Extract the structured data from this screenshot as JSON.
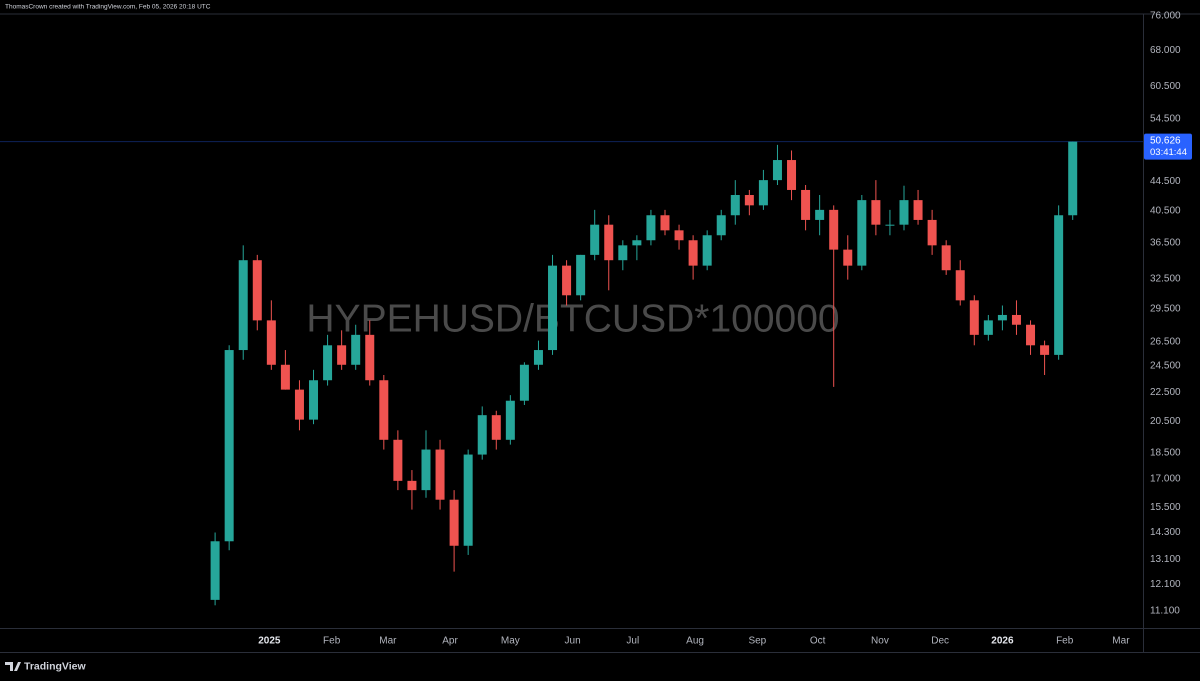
{
  "chart_data": {
    "type": "candlestick",
    "attribution": "ThomasCrown created with TradingView.com, Feb 05, 2026 20:18 UTC",
    "symbol": "HYPEHUSD/BTCUSD*100000",
    "brand": "TradingView",
    "log_scale": true,
    "grid": false,
    "up_color": "#26a69a",
    "down_color": "#ef5350",
    "categories": [
      null,
      null,
      null,
      null,
      null,
      null,
      null,
      null,
      null,
      null,
      null,
      null,
      null,
      null,
      null,
      null,
      null,
      null,
      null,
      null,
      null,
      null,
      null,
      null,
      null,
      null,
      null,
      null,
      null,
      null,
      null,
      null,
      null,
      null,
      null,
      null,
      null,
      null,
      null,
      null,
      null,
      null,
      null,
      null,
      null,
      null,
      null,
      null,
      null,
      null,
      null,
      null,
      null,
      null,
      null,
      null,
      null,
      null,
      null,
      null,
      null,
      null
    ],
    "open": [
      11.5,
      13.9,
      25.8,
      34.5,
      28.4,
      24.6,
      22.7,
      20.6,
      23.4,
      26.2,
      24.6,
      27.1,
      23.4,
      19.3,
      16.9,
      16.4,
      18.7,
      15.9,
      13.7,
      18.4,
      20.9,
      19.3,
      21.9,
      24.6,
      25.8,
      33.9,
      30.8,
      35.1,
      38.7,
      34.5,
      36.2,
      36.8,
      39.9,
      38.0,
      36.8,
      33.9,
      37.4,
      39.9,
      42.6,
      41.2,
      44.7,
      47.7,
      43.3,
      39.3,
      40.6,
      35.7,
      33.9,
      41.9,
      38.7,
      38.7,
      41.9,
      39.3,
      36.2,
      33.4,
      30.3,
      27.1,
      28.4,
      28.9,
      28.0,
      26.2,
      25.4,
      39.9
    ],
    "high": [
      14.3,
      26.2,
      36.2,
      35.1,
      30.3,
      25.8,
      23.4,
      24.2,
      27.1,
      27.5,
      28.0,
      28.4,
      23.8,
      19.9,
      17.5,
      19.9,
      19.3,
      16.4,
      18.7,
      21.5,
      21.2,
      22.3,
      24.8,
      26.6,
      35.1,
      34.5,
      35.1,
      40.6,
      39.9,
      36.8,
      37.4,
      40.6,
      40.6,
      38.7,
      37.4,
      38.0,
      40.6,
      44.7,
      43.3,
      46.2,
      50.1,
      49.2,
      44.0,
      42.6,
      41.2,
      37.4,
      42.6,
      44.7,
      40.6,
      43.9,
      43.3,
      40.6,
      36.8,
      34.5,
      30.8,
      28.9,
      29.8,
      30.3,
      28.4,
      26.6,
      41.2,
      50.626
    ],
    "low": [
      11.3,
      13.5,
      25.0,
      27.5,
      24.2,
      22.7,
      19.9,
      20.3,
      23.0,
      24.2,
      24.2,
      23.0,
      18.7,
      16.4,
      15.4,
      16.0,
      15.4,
      12.6,
      13.3,
      18.1,
      18.7,
      19.0,
      21.6,
      24.2,
      25.4,
      29.8,
      30.3,
      34.5,
      31.3,
      33.4,
      34.5,
      36.2,
      37.4,
      35.7,
      32.4,
      33.4,
      36.8,
      38.7,
      39.9,
      40.6,
      44.0,
      41.9,
      38.0,
      37.4,
      22.9,
      32.4,
      33.4,
      37.4,
      37.4,
      38.0,
      38.7,
      35.1,
      32.9,
      29.8,
      26.2,
      26.6,
      27.5,
      27.1,
      25.4,
      23.8,
      25.0,
      39.3
    ],
    "close": [
      13.9,
      25.8,
      34.5,
      28.4,
      24.6,
      22.7,
      20.6,
      23.4,
      26.2,
      24.6,
      27.1,
      23.4,
      19.3,
      16.9,
      16.4,
      18.7,
      15.9,
      13.7,
      18.4,
      20.9,
      19.3,
      21.9,
      24.6,
      25.8,
      33.9,
      30.8,
      35.1,
      38.7,
      34.5,
      36.2,
      36.8,
      39.9,
      38.0,
      36.8,
      33.9,
      37.4,
      39.9,
      42.6,
      41.2,
      44.7,
      47.7,
      43.3,
      39.3,
      40.6,
      35.7,
      33.9,
      41.9,
      38.7,
      38.7,
      41.9,
      39.3,
      36.2,
      33.4,
      30.3,
      27.1,
      28.4,
      28.9,
      28.0,
      26.2,
      25.4,
      39.9,
      50.626
    ],
    "last_price": 50.626,
    "countdown": "03:41:44",
    "xlim": [
      -15.3,
      66.0
    ],
    "xticks": [
      {
        "value": 3.86,
        "label": "2025"
      },
      {
        "value": 8.29,
        "label": "Feb"
      },
      {
        "value": 12.29,
        "label": "Mar"
      },
      {
        "value": 16.71,
        "label": "Apr"
      },
      {
        "value": 21.0,
        "label": "May"
      },
      {
        "value": 25.43,
        "label": "Jun"
      },
      {
        "value": 29.71,
        "label": "Jul"
      },
      {
        "value": 34.14,
        "label": "Aug"
      },
      {
        "value": 38.57,
        "label": "Sep"
      },
      {
        "value": 42.86,
        "label": "Oct"
      },
      {
        "value": 47.29,
        "label": "Nov"
      },
      {
        "value": 51.57,
        "label": "Dec"
      },
      {
        "value": 56.0,
        "label": "2026"
      },
      {
        "value": 60.43,
        "label": "Feb"
      },
      {
        "value": 64.43,
        "label": "Mar"
      }
    ],
    "ylim": [
      10.5,
      76.5
    ],
    "yticks": [
      {
        "value": 11.1,
        "label": "11.100"
      },
      {
        "value": 12.1,
        "label": "12.100"
      },
      {
        "value": 13.1,
        "label": "13.100"
      },
      {
        "value": 14.3,
        "label": "14.300"
      },
      {
        "value": 15.5,
        "label": "15.500"
      },
      {
        "value": 17,
        "label": "17.000"
      },
      {
        "value": 18.5,
        "label": "18.500"
      },
      {
        "value": 20.5,
        "label": "20.500"
      },
      {
        "value": 22.5,
        "label": "22.500"
      },
      {
        "value": 24.5,
        "label": "24.500"
      },
      {
        "value": 26.5,
        "label": "26.500"
      },
      {
        "value": 29.5,
        "label": "29.500"
      },
      {
        "value": 32.5,
        "label": "32.500"
      },
      {
        "value": 36.5,
        "label": "36.500"
      },
      {
        "value": 40.5,
        "label": "40.500"
      },
      {
        "value": 44.5,
        "label": "44.500"
      },
      {
        "value": 54.5,
        "label": "54.500"
      },
      {
        "value": 60.5,
        "label": "60.500"
      },
      {
        "value": 68,
        "label": "68.000"
      },
      {
        "value": 76,
        "label": "76.000"
      }
    ]
  }
}
